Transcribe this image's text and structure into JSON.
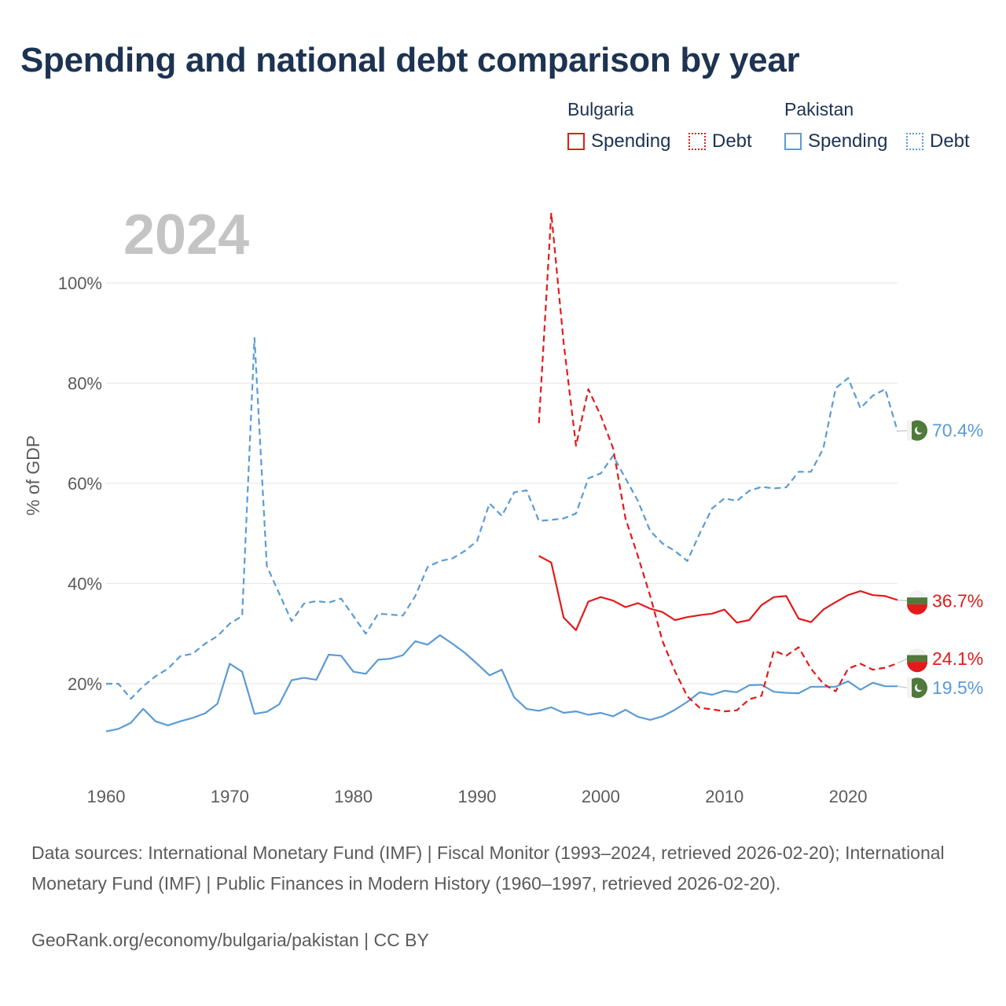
{
  "title": "Spending and national debt comparison by year",
  "legend": {
    "groups": [
      {
        "name": "Bulgaria",
        "items": [
          {
            "label": "Spending",
            "style": "solid",
            "color": "#e31a1c"
          },
          {
            "label": "Debt",
            "style": "dotted",
            "color": "#e31a1c"
          }
        ]
      },
      {
        "name": "Pakistan",
        "items": [
          {
            "label": "Spending",
            "style": "solid",
            "color": "#5b9bd5"
          },
          {
            "label": "Debt",
            "style": "dotted",
            "color": "#5b9bd5"
          }
        ]
      }
    ]
  },
  "year_watermark": "2024",
  "sources": "Data sources: International Monetary Fund (IMF) | Fiscal Monitor (1993–2024, retrieved 2026-02-20); International Monetary Fund (IMF) | Public Finances in Modern History (1960–1997, retrieved 2026-02-20).",
  "credit": "GeoRank.org/economy/bulgaria/pakistan | CC BY",
  "chart_data": {
    "type": "line",
    "title": "Spending and national debt comparison by year",
    "xlabel": "",
    "ylabel": "% of GDP",
    "xlim": [
      1960,
      2024
    ],
    "ylim": [
      0,
      100
    ],
    "x_ticks": [
      1960,
      1970,
      1980,
      1990,
      2000,
      2010,
      2020
    ],
    "y_ticks": [
      20,
      40,
      60,
      80,
      100
    ],
    "y_tick_labels": [
      "20%",
      "40%",
      "60%",
      "80%",
      "100%"
    ],
    "series": [
      {
        "name": "Pakistan Debt",
        "country": "Pakistan",
        "metric": "Debt",
        "color": "#5b9bd5",
        "dashed": true,
        "end_label": "70.4%",
        "x": [
          1960,
          1961,
          1962,
          1963,
          1964,
          1965,
          1966,
          1967,
          1968,
          1969,
          1970,
          1971,
          1972,
          1973,
          1974,
          1975,
          1976,
          1977,
          1978,
          1979,
          1980,
          1981,
          1982,
          1983,
          1984,
          1985,
          1986,
          1987,
          1988,
          1989,
          1990,
          1991,
          1992,
          1993,
          1994,
          1995,
          1996,
          1997,
          1998,
          1999,
          2000,
          2001,
          2002,
          2003,
          2004,
          2005,
          2006,
          2007,
          2008,
          2009,
          2010,
          2011,
          2012,
          2013,
          2014,
          2015,
          2016,
          2017,
          2018,
          2019,
          2020,
          2021,
          2022,
          2023,
          2024
        ],
        "values": [
          20.0,
          20.0,
          17.0,
          19.5,
          21.5,
          23.0,
          25.5,
          26.0,
          28.0,
          29.5,
          32.0,
          33.5,
          89.0,
          43.5,
          38.0,
          32.5,
          36.0,
          36.5,
          36.2,
          37.0,
          33.5,
          30.0,
          34.0,
          33.8,
          33.6,
          37.5,
          43.3,
          44.5,
          45.0,
          46.5,
          48.5,
          56.0,
          53.5,
          58.2,
          58.6,
          52.5,
          52.7,
          53.0,
          54.0,
          61.0,
          62.0,
          65.5,
          61.0,
          56.5,
          50.5,
          48.0,
          46.5,
          44.5,
          50.0,
          55.0,
          57.0,
          56.5,
          58.5,
          59.3,
          59.0,
          59.2,
          62.3,
          62.3,
          67.0,
          79.0,
          81.0,
          75.0,
          77.5,
          78.8,
          70.4
        ]
      },
      {
        "name": "Pakistan Spending",
        "country": "Pakistan",
        "metric": "Spending",
        "color": "#5b9bd5",
        "dashed": false,
        "end_label": "19.5%",
        "x": [
          1960,
          1961,
          1962,
          1963,
          1964,
          1965,
          1966,
          1967,
          1968,
          1969,
          1970,
          1971,
          1972,
          1973,
          1974,
          1975,
          1976,
          1977,
          1978,
          1979,
          1980,
          1981,
          1982,
          1983,
          1984,
          1985,
          1986,
          1987,
          1988,
          1989,
          1990,
          1991,
          1992,
          1993,
          1994,
          1995,
          1996,
          1997,
          1998,
          1999,
          2000,
          2001,
          2002,
          2003,
          2004,
          2005,
          2006,
          2007,
          2008,
          2009,
          2010,
          2011,
          2012,
          2013,
          2014,
          2015,
          2016,
          2017,
          2018,
          2019,
          2020,
          2021,
          2022,
          2023,
          2024
        ],
        "values": [
          10.5,
          11.0,
          12.2,
          15.0,
          12.5,
          11.7,
          12.5,
          13.2,
          14.1,
          16.0,
          24.0,
          22.4,
          14.0,
          14.4,
          15.9,
          20.7,
          21.2,
          20.8,
          25.8,
          25.6,
          22.4,
          22.0,
          24.8,
          25.0,
          25.7,
          28.5,
          27.8,
          29.7,
          28.0,
          26.2,
          24.0,
          21.7,
          22.8,
          17.3,
          15.0,
          14.6,
          15.3,
          14.2,
          14.5,
          13.8,
          14.2,
          13.5,
          14.8,
          13.4,
          12.8,
          13.5,
          14.8,
          16.4,
          18.3,
          17.8,
          18.6,
          18.3,
          19.7,
          19.8,
          18.4,
          18.2,
          18.1,
          19.4,
          19.4,
          19.4,
          20.5,
          18.8,
          20.2,
          19.5,
          19.5
        ]
      },
      {
        "name": "Bulgaria Debt",
        "country": "Bulgaria",
        "metric": "Debt",
        "color": "#e31a1c",
        "dashed": true,
        "end_label": "24.1%",
        "x": [
          1995,
          1996,
          1997,
          1998,
          1999,
          2000,
          2001,
          2002,
          2003,
          2004,
          2005,
          2006,
          2007,
          2008,
          2009,
          2010,
          2011,
          2012,
          2013,
          2014,
          2015,
          2016,
          2017,
          2018,
          2019,
          2020,
          2021,
          2022,
          2023,
          2024
        ],
        "values": [
          72.0,
          114.0,
          88.0,
          67.5,
          78.8,
          73.5,
          67.0,
          53.0,
          45.5,
          37.5,
          28.5,
          22.5,
          17.5,
          15.2,
          14.9,
          14.5,
          14.7,
          16.9,
          17.6,
          26.6,
          25.6,
          27.3,
          23.0,
          20.0,
          18.5,
          23.0,
          24.0,
          22.8,
          23.2,
          24.1
        ]
      },
      {
        "name": "Bulgaria Spending",
        "country": "Bulgaria",
        "metric": "Spending",
        "color": "#e31a1c",
        "dashed": false,
        "end_label": "36.7%",
        "x": [
          1995,
          1996,
          1997,
          1998,
          1999,
          2000,
          2001,
          2002,
          2003,
          2004,
          2005,
          2006,
          2007,
          2008,
          2009,
          2010,
          2011,
          2012,
          2013,
          2014,
          2015,
          2016,
          2017,
          2018,
          2019,
          2020,
          2021,
          2022,
          2023,
          2024
        ],
        "values": [
          45.5,
          44.2,
          33.2,
          30.7,
          36.4,
          37.3,
          36.6,
          35.3,
          36.1,
          35.0,
          34.3,
          32.7,
          33.3,
          33.7,
          34.0,
          34.8,
          32.2,
          32.7,
          35.7,
          37.3,
          37.5,
          33.0,
          32.3,
          34.8,
          36.3,
          37.7,
          38.5,
          37.7,
          37.5,
          36.7
        ]
      }
    ]
  }
}
